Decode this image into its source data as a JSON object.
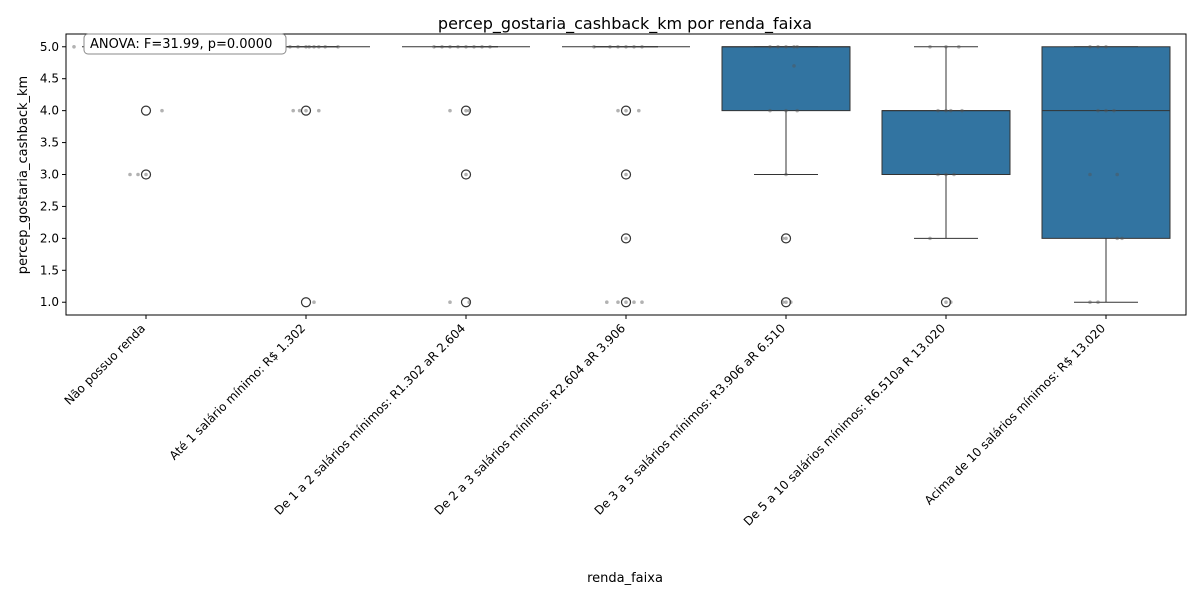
{
  "chart_data": {
    "type": "box",
    "title": "percep_gostaria_cashback_km por renda_faixa",
    "xlabel": "renda_faixa",
    "ylabel": "percep_gostaria_cashback_km",
    "ylim": [
      0.8,
      5.2
    ],
    "yticks": [
      "1.0",
      "1.5",
      "2.0",
      "2.5",
      "3.0",
      "3.5",
      "4.0",
      "4.5",
      "5.0"
    ],
    "grid": false,
    "box_color": "#3274a1",
    "annotation": "ANOVA: F=31.99, p=0.0000",
    "categories": [
      "Não possuo renda",
      "Até 1 salário mínimo:  R$ 1.302",
      "De 1 a 2 salários mínimos: R1.302 aR 2.604",
      "De 2 a 3 salários mínimos: R2.604 aR 3.906",
      "De 3 a 5 salários mínimos: R3.906 aR 6.510",
      "De 5 a 10 salários mínimos: R6.510a R 13.020",
      "Acima de 10 salários mínimos:  R$ 13.020"
    ],
    "boxes": [
      {
        "q1": 5,
        "median": 5,
        "q3": 5,
        "whisker_low": 5,
        "whisker_high": 5,
        "outliers": [
          4,
          3
        ]
      },
      {
        "q1": 5,
        "median": 5,
        "q3": 5,
        "whisker_low": 5,
        "whisker_high": 5,
        "outliers": [
          4,
          1
        ]
      },
      {
        "q1": 5,
        "median": 5,
        "q3": 5,
        "whisker_low": 5,
        "whisker_high": 5,
        "outliers": [
          4,
          3,
          1
        ]
      },
      {
        "q1": 5,
        "median": 5,
        "q3": 5,
        "whisker_low": 5,
        "whisker_high": 5,
        "outliers": [
          4,
          3,
          2,
          1
        ]
      },
      {
        "q1": 4,
        "median": 5,
        "q3": 5,
        "whisker_low": 3,
        "whisker_high": 5,
        "outliers": [
          2,
          1
        ]
      },
      {
        "q1": 3,
        "median": 4,
        "q3": 4,
        "whisker_low": 2,
        "whisker_high": 5,
        "outliers": [
          1
        ]
      },
      {
        "q1": 2,
        "median": 4,
        "q3": 5,
        "whisker_low": 1,
        "whisker_high": 5,
        "outliers": []
      }
    ],
    "points": [
      [
        [
          5,
          -0.45
        ],
        [
          5,
          -0.3
        ],
        [
          5,
          -0.1
        ],
        [
          5,
          0.15
        ],
        [
          5,
          0.35
        ],
        [
          4,
          0.1
        ],
        [
          3,
          -0.1
        ],
        [
          3,
          -0.05
        ],
        [
          3,
          0.0
        ]
      ],
      [
        [
          5,
          -0.15
        ],
        [
          5,
          -0.1
        ],
        [
          5,
          -0.05
        ],
        [
          5,
          0.0
        ],
        [
          5,
          0.02
        ],
        [
          5,
          0.05
        ],
        [
          5,
          0.08
        ],
        [
          5,
          0.12
        ],
        [
          5,
          0.2
        ],
        [
          4,
          -0.08
        ],
        [
          4,
          -0.04
        ],
        [
          4,
          0.0
        ],
        [
          4,
          0.08
        ],
        [
          1,
          0.05
        ]
      ],
      [
        [
          5,
          -0.2
        ],
        [
          5,
          -0.15
        ],
        [
          5,
          -0.1
        ],
        [
          5,
          -0.05
        ],
        [
          5,
          0.0
        ],
        [
          5,
          0.05
        ],
        [
          5,
          0.1
        ],
        [
          5,
          0.15
        ],
        [
          4,
          -0.1
        ],
        [
          4,
          0.0
        ],
        [
          4,
          0.02
        ],
        [
          3,
          0.0
        ],
        [
          1,
          -0.1
        ],
        [
          1,
          0.02
        ]
      ],
      [
        [
          5,
          -0.2
        ],
        [
          5,
          -0.1
        ],
        [
          5,
          -0.05
        ],
        [
          5,
          0.0
        ],
        [
          5,
          0.05
        ],
        [
          5,
          0.1
        ],
        [
          4,
          -0.05
        ],
        [
          4,
          0.0
        ],
        [
          4,
          0.08
        ],
        [
          3,
          0.0
        ],
        [
          2,
          0.0
        ],
        [
          1,
          -0.12
        ],
        [
          1,
          -0.05
        ],
        [
          1,
          0.0
        ],
        [
          1,
          0.05
        ],
        [
          1,
          0.1
        ]
      ],
      [
        [
          5,
          -0.1
        ],
        [
          5,
          -0.05
        ],
        [
          5,
          0.0
        ],
        [
          5,
          0.05
        ],
        [
          5,
          0.07
        ],
        [
          4.7,
          0.05
        ],
        [
          4,
          -0.1
        ],
        [
          4,
          0.0
        ],
        [
          4,
          0.07
        ],
        [
          3,
          0.0
        ],
        [
          2,
          -0.02
        ],
        [
          2,
          0.0
        ],
        [
          1,
          -0.02
        ],
        [
          1,
          0.0
        ],
        [
          1,
          0.03
        ]
      ],
      [
        [
          5,
          -0.1
        ],
        [
          5,
          0.0
        ],
        [
          5,
          0.08
        ],
        [
          4,
          -0.05
        ],
        [
          4,
          0.0
        ],
        [
          4,
          0.03
        ],
        [
          4,
          0.1
        ],
        [
          3,
          -0.05
        ],
        [
          3,
          0.0
        ],
        [
          3,
          0.05
        ],
        [
          2,
          -0.1
        ],
        [
          1,
          0.0
        ],
        [
          1,
          0.03
        ]
      ],
      [
        [
          5,
          -0.1
        ],
        [
          5,
          -0.05
        ],
        [
          5,
          0.0
        ],
        [
          4,
          -0.05
        ],
        [
          4,
          0.0
        ],
        [
          4,
          0.05
        ],
        [
          3,
          -0.1
        ],
        [
          3,
          0.07
        ],
        [
          2,
          0.07
        ],
        [
          2,
          0.1
        ],
        [
          1,
          -0.1
        ],
        [
          1,
          -0.05
        ]
      ]
    ]
  }
}
